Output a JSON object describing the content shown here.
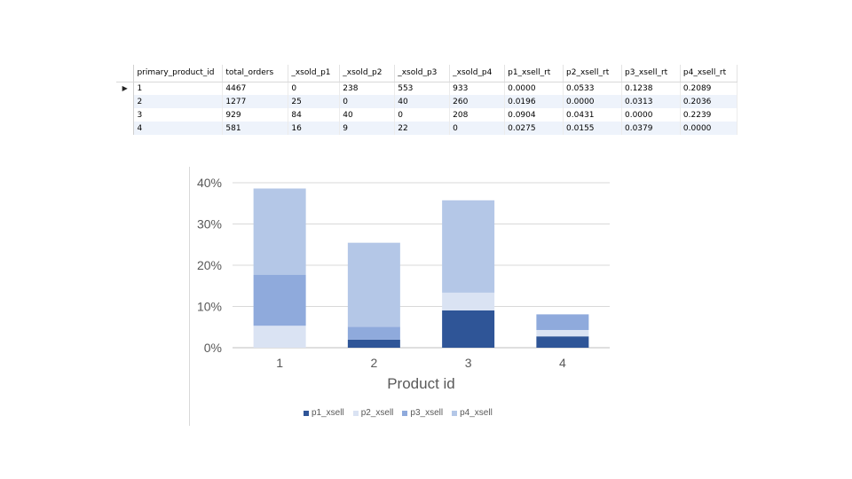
{
  "grid": {
    "columns": [
      "primary_product_id",
      "total_orders",
      "_xsold_p1",
      "_xsold_p2",
      "_xsold_p3",
      "_xsold_p4",
      "p1_xsell_rt",
      "p2_xsell_rt",
      "p3_xsell_rt",
      "p4_xsell_rt"
    ],
    "rows": [
      [
        "1",
        "4467",
        "0",
        "238",
        "553",
        "933",
        "0.0000",
        "0.0533",
        "0.1238",
        "0.2089"
      ],
      [
        "2",
        "1277",
        "25",
        "0",
        "40",
        "260",
        "0.0196",
        "0.0000",
        "0.0313",
        "0.2036"
      ],
      [
        "3",
        "929",
        "84",
        "40",
        "0",
        "208",
        "0.0904",
        "0.0431",
        "0.0000",
        "0.2239"
      ],
      [
        "4",
        "581",
        "16",
        "9",
        "22",
        "0",
        "0.0275",
        "0.0155",
        "0.0379",
        "0.0000"
      ]
    ],
    "current_row_marker": "▶"
  },
  "chart_data": {
    "type": "bar",
    "stacked": true,
    "categories": [
      "1",
      "2",
      "3",
      "4"
    ],
    "series": [
      {
        "name": "p1_xsell",
        "values": [
          0.0,
          0.0196,
          0.0904,
          0.0275
        ],
        "color": "#2f5597"
      },
      {
        "name": "p2_xsell",
        "values": [
          0.0533,
          0.0,
          0.0431,
          0.0155
        ],
        "color": "#dae3f3"
      },
      {
        "name": "p3_xsell",
        "values": [
          0.1238,
          0.0313,
          0.0,
          0.0379
        ],
        "color": "#8faadc"
      },
      {
        "name": "p4_xsell",
        "values": [
          0.2089,
          0.2036,
          0.2239,
          0.0
        ],
        "color": "#b4c7e7"
      }
    ],
    "yticks": [
      "0%",
      "10%",
      "20%",
      "30%",
      "40%"
    ],
    "ylim": [
      0,
      0.4
    ],
    "xlabel": "Product id",
    "ylabel": "",
    "grid": true,
    "legend_position": "bottom"
  }
}
